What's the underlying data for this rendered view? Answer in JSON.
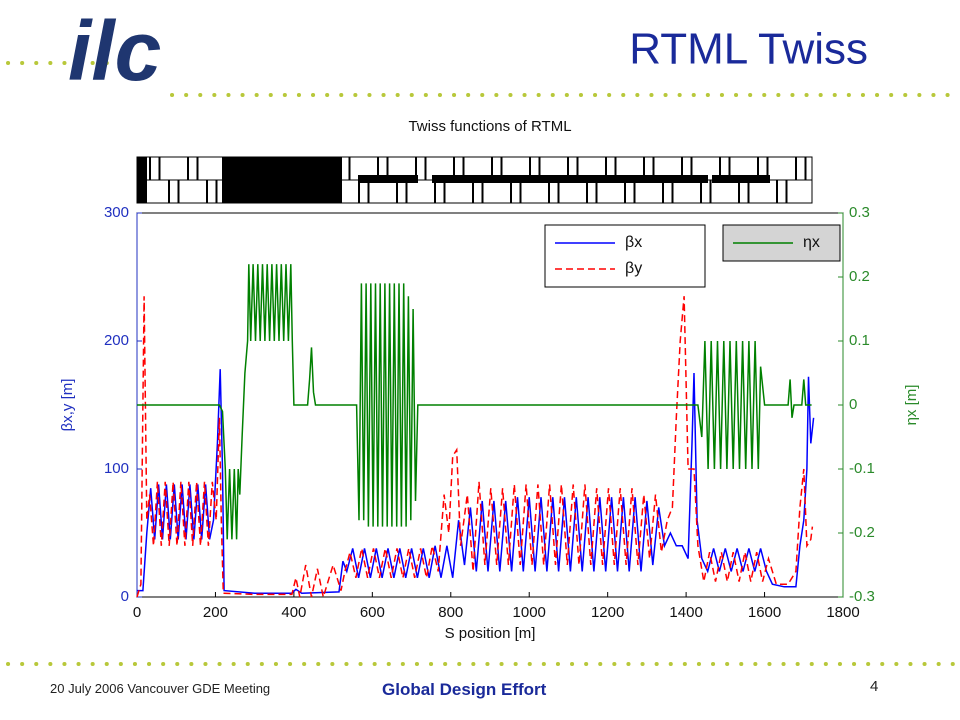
{
  "slide": {
    "logo": "ilc",
    "title": "RTML Twiss",
    "footer_left": "20 July 2006 Vancouver GDE Meeting",
    "footer_center": "Global Design Effort",
    "page": "4"
  },
  "chart_data": {
    "type": "line",
    "title": "Twiss functions of RTML",
    "x_label": "S position [m]",
    "y_label": "βx,y [m]",
    "y2_label": "ηx [m]",
    "xlim": [
      0,
      1800
    ],
    "xticks": [
      0,
      200,
      400,
      600,
      800,
      1000,
      1200,
      1400,
      1600,
      1800
    ],
    "ylim": [
      0,
      300
    ],
    "yticks": [
      0,
      100,
      200,
      300
    ],
    "y2lim": [
      -0.3,
      0.3
    ],
    "y2ticks": [
      -0.3,
      -0.2,
      -0.1,
      0,
      0.1,
      0.2,
      0.3
    ],
    "grid": false,
    "legend": "upper right",
    "series": [
      {
        "name": "βx",
        "color": "#0000ff",
        "dash": false,
        "x": [
          0,
          15,
          25,
          35,
          45,
          55,
          65,
          75,
          85,
          95,
          105,
          115,
          125,
          135,
          145,
          155,
          165,
          175,
          185,
          195,
          205,
          212,
          218,
          222,
          300,
          395,
          405,
          420,
          515,
          525,
          535,
          550,
          565,
          580,
          595,
          610,
          625,
          640,
          655,
          670,
          685,
          700,
          715,
          730,
          745,
          760,
          775,
          790,
          805,
          820,
          835,
          850,
          865,
          880,
          895,
          910,
          925,
          940,
          955,
          970,
          985,
          1000,
          1015,
          1030,
          1045,
          1060,
          1075,
          1090,
          1105,
          1120,
          1135,
          1150,
          1165,
          1180,
          1195,
          1210,
          1225,
          1240,
          1255,
          1270,
          1285,
          1300,
          1315,
          1330,
          1345,
          1360,
          1375,
          1390,
          1405,
          1415,
          1420,
          1428,
          1440,
          1455,
          1470,
          1485,
          1500,
          1515,
          1530,
          1545,
          1560,
          1575,
          1590,
          1605,
          1620,
          1650,
          1680,
          1690,
          1700,
          1708,
          1712,
          1718,
          1725
        ],
        "values": [
          5,
          5,
          50,
          85,
          45,
          88,
          45,
          88,
          45,
          88,
          45,
          88,
          45,
          88,
          45,
          88,
          45,
          88,
          45,
          60,
          120,
          178,
          100,
          5,
          3,
          3,
          6,
          3,
          4,
          28,
          20,
          38,
          15,
          38,
          15,
          38,
          15,
          38,
          15,
          38,
          15,
          38,
          15,
          38,
          15,
          40,
          15,
          40,
          15,
          60,
          25,
          70,
          20,
          75,
          20,
          75,
          20,
          75,
          20,
          78,
          20,
          78,
          20,
          78,
          20,
          78,
          20,
          78,
          20,
          78,
          20,
          78,
          20,
          78,
          20,
          78,
          20,
          78,
          20,
          78,
          20,
          75,
          25,
          70,
          40,
          50,
          40,
          40,
          30,
          120,
          175,
          60,
          30,
          20,
          38,
          20,
          38,
          20,
          38,
          20,
          38,
          20,
          38,
          20,
          10,
          8,
          8,
          40,
          60,
          100,
          172,
          120,
          140
        ]
      },
      {
        "name": "βy",
        "color": "#ff0000",
        "dash": true,
        "x": [
          0,
          10,
          18,
          25,
          32,
          42,
          52,
          62,
          72,
          82,
          92,
          102,
          112,
          122,
          132,
          142,
          152,
          162,
          172,
          182,
          192,
          202,
          210,
          215,
          220,
          300,
          395,
          405,
          415,
          430,
          445,
          460,
          475,
          500,
          520,
          530,
          543,
          558,
          573,
          588,
          603,
          618,
          633,
          648,
          663,
          678,
          693,
          708,
          723,
          738,
          753,
          768,
          783,
          795,
          805,
          815,
          825,
          842,
          857,
          872,
          887,
          902,
          917,
          932,
          947,
          962,
          977,
          992,
          1007,
          1022,
          1037,
          1052,
          1067,
          1082,
          1097,
          1112,
          1127,
          1142,
          1157,
          1172,
          1187,
          1202,
          1217,
          1232,
          1247,
          1262,
          1277,
          1292,
          1307,
          1322,
          1337,
          1352,
          1365,
          1375,
          1385,
          1395,
          1405,
          1420,
          1430,
          1445,
          1460,
          1475,
          1490,
          1505,
          1520,
          1535,
          1550,
          1565,
          1580,
          1595,
          1610,
          1630,
          1660,
          1680,
          1690,
          1700,
          1708,
          1718,
          1722
        ],
        "values": [
          0,
          10,
          235,
          60,
          80,
          40,
          90,
          40,
          90,
          40,
          90,
          40,
          90,
          40,
          90,
          40,
          90,
          40,
          90,
          40,
          90,
          60,
          140,
          60,
          3,
          2,
          2,
          15,
          0,
          25,
          0,
          22,
          0,
          25,
          5,
          20,
          35,
          15,
          38,
          15,
          38,
          15,
          38,
          15,
          38,
          15,
          38,
          15,
          38,
          15,
          40,
          20,
          80,
          50,
          110,
          115,
          40,
          80,
          20,
          90,
          25,
          85,
          25,
          85,
          25,
          88,
          25,
          88,
          25,
          88,
          25,
          88,
          25,
          88,
          25,
          88,
          25,
          88,
          25,
          85,
          25,
          85,
          25,
          85,
          25,
          85,
          25,
          80,
          30,
          80,
          35,
          60,
          70,
          140,
          200,
          235,
          100,
          100,
          40,
          12,
          35,
          12,
          35,
          12,
          35,
          12,
          35,
          12,
          35,
          12,
          30,
          10,
          10,
          20,
          70,
          100,
          40,
          45,
          55
        ]
      },
      {
        "name": "ηx",
        "color": "#008000",
        "dash": false,
        "axis": "y2",
        "x": [
          0,
          210,
          218,
          225,
          230,
          236,
          242,
          248,
          254,
          258,
          262,
          268,
          275,
          282,
          285,
          290,
          296,
          302,
          308,
          314,
          320,
          326,
          332,
          338,
          344,
          350,
          356,
          362,
          368,
          374,
          380,
          386,
          392,
          396,
          400,
          435,
          440,
          445,
          450,
          455,
          560,
          566,
          572,
          578,
          584,
          590,
          596,
          602,
          608,
          614,
          620,
          626,
          632,
          638,
          644,
          650,
          656,
          662,
          668,
          674,
          680,
          686,
          692,
          698,
          704,
          710,
          716,
          1430,
          1440,
          1448,
          1456,
          1464,
          1472,
          1480,
          1488,
          1496,
          1504,
          1512,
          1520,
          1528,
          1536,
          1544,
          1552,
          1560,
          1568,
          1576,
          1584,
          1590,
          1600,
          1660,
          1665,
          1670,
          1675,
          1695,
          1700,
          1705,
          1720
        ],
        "values": [
          0,
          0,
          -0.01,
          -0.1,
          -0.21,
          -0.1,
          -0.21,
          -0.1,
          -0.21,
          -0.1,
          -0.14,
          -0.05,
          0.05,
          0.1,
          0.22,
          0.1,
          0.22,
          0.1,
          0.22,
          0.1,
          0.22,
          0.1,
          0.22,
          0.1,
          0.22,
          0.1,
          0.22,
          0.1,
          0.22,
          0.1,
          0.22,
          0.1,
          0.22,
          0.1,
          0,
          0,
          0.04,
          0.09,
          0.02,
          0,
          0,
          -0.18,
          0.19,
          -0.18,
          0.19,
          -0.19,
          0.19,
          -0.19,
          0.19,
          -0.19,
          0.19,
          -0.19,
          0.19,
          -0.19,
          0.19,
          -0.19,
          0.19,
          -0.19,
          0.19,
          -0.19,
          0.19,
          -0.19,
          0.17,
          -0.18,
          0.15,
          -0.15,
          0,
          0,
          -0.05,
          0.1,
          -0.1,
          0.1,
          -0.1,
          0.1,
          -0.1,
          0.1,
          -0.1,
          0.1,
          -0.1,
          0.1,
          -0.1,
          0.1,
          -0.1,
          0.1,
          -0.1,
          0.1,
          -0.1,
          0.06,
          0,
          0,
          0.04,
          -0.02,
          0,
          0,
          0.04,
          0,
          0
        ]
      }
    ]
  }
}
